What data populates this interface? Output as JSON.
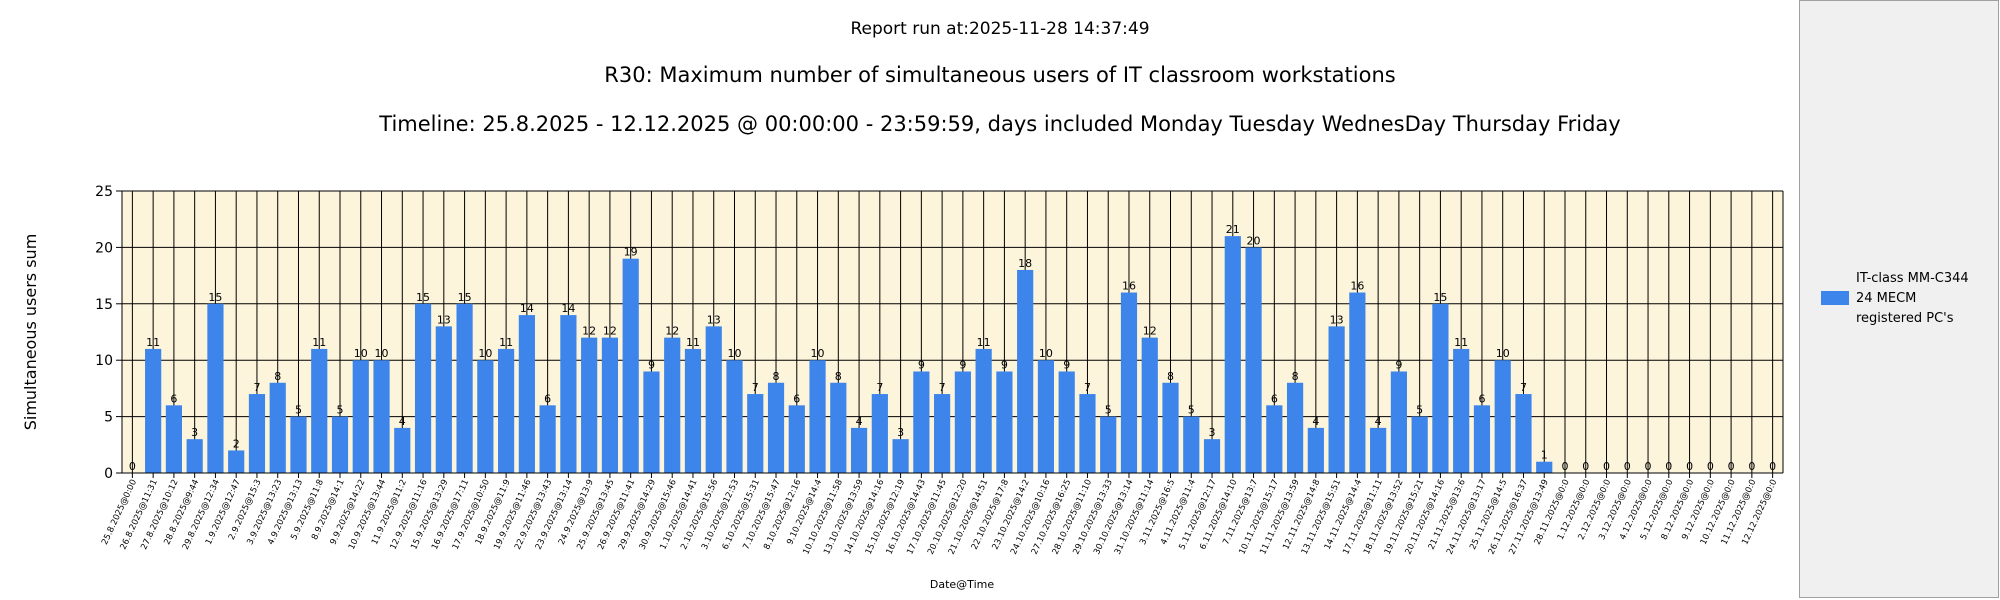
{
  "report_run": "Report run at:2025-11-28 14:37:49",
  "legend": {
    "lines": [
      "IT-class MM-C344",
      "24 MECM",
      "registered PC's"
    ]
  },
  "colors": {
    "bar": "#3d85ea",
    "plot_bg": "#fdf5db",
    "legend_bg": "#f0f0f0"
  },
  "chart_data": {
    "type": "bar",
    "title": "R30: Maximum number of simultaneous users of IT classroom workstations",
    "subtitle": "Timeline: 25.8.2025  - 12.12.2025  @  00:00:00 -  23:59:59, days included Monday Tuesday WednesDay Thursday Friday",
    "xlabel": "Date@Time",
    "ylabel": "Simultaneous users sum",
    "ylim": [
      0,
      25
    ],
    "yticks": [
      0,
      5,
      10,
      15,
      20,
      25
    ],
    "grid": true,
    "legend_position": "right",
    "categories": [
      "25.8.2025@0:00",
      "26.8.2025@11:31",
      "27.8.2025@10:12",
      "28.8.2025@9:44",
      "29.8.2025@12:34",
      "1.9.2025@12:47",
      "2.9.2025@15:3",
      "3.9.2025@13:23",
      "4.9.2025@13:13",
      "5.9.2025@11:8",
      "8.9.2025@14:1",
      "9.9.2025@14:22",
      "10.9.2025@13:44",
      "11.9.2025@11:2",
      "12.9.2025@11:16",
      "15.9.2025@13:29",
      "16.9.2025@17:11",
      "17.9.2025@10:50",
      "18.9.2025@11:9",
      "19.9.2025@11:46",
      "22.9.2025@13:43",
      "23.9.2025@13:14",
      "24.9.2025@13:9",
      "25.9.2025@13:45",
      "26.9.2025@11:41",
      "29.9.2025@14:29",
      "30.9.2025@15:46",
      "1.10.2025@14:41",
      "2.10.2025@15:56",
      "3.10.2025@12:53",
      "6.10.2025@15:31",
      "7.10.2025@15:47",
      "8.10.2025@12:16",
      "9.10.2025@14:4",
      "10.10.2025@11:58",
      "13.10.2025@13:59",
      "14.10.2025@14:16",
      "15.10.2025@12:19",
      "16.10.2025@14:43",
      "17.10.2025@11:45",
      "20.10.2025@12:20",
      "21.10.2025@14:51",
      "22.10.2025@17:8",
      "23.10.2025@14:2",
      "24.10.2025@10:16",
      "27.10.2025@16:25",
      "28.10.2025@11:10",
      "29.10.2025@13:33",
      "30.10.2025@13:14",
      "31.10.2025@11:14",
      "3.11.2025@16:5",
      "4.11.2025@11:4",
      "5.11.2025@12:17",
      "6.11.2025@14:10",
      "7.11.2025@13:7",
      "10.11.2025@15:17",
      "11.11.2025@13:59",
      "12.11.2025@14:8",
      "13.11.2025@15:51",
      "14.11.2025@14:4",
      "17.11.2025@11:11",
      "18.11.2025@13:52",
      "19.11.2025@15:21",
      "20.11.2025@14:16",
      "21.11.2025@13:6",
      "24.11.2025@13:17",
      "25.11.2025@14:5",
      "26.11.2025@16:37",
      "27.11.2025@13:49",
      "28.11.2025@0:0",
      "1.12.2025@0:0",
      "2.12.2025@0:0",
      "3.12.2025@0:0",
      "4.12.2025@0:0",
      "5.12.2025@0:0",
      "8.12.2025@0:0",
      "9.12.2025@0:0",
      "10.12.2025@0:0",
      "11.12.2025@0:0",
      "12.12.2025@0:0"
    ],
    "series": [
      {
        "name": "IT-class MM-C344 24 MECM registered PC's",
        "values": [
          0,
          11,
          6,
          3,
          15,
          2,
          7,
          8,
          5,
          11,
          5,
          10,
          10,
          4,
          15,
          13,
          15,
          10,
          11,
          14,
          6,
          14,
          12,
          12,
          19,
          9,
          12,
          11,
          13,
          10,
          7,
          8,
          6,
          10,
          8,
          4,
          7,
          3,
          9,
          7,
          9,
          11,
          9,
          18,
          10,
          9,
          7,
          5,
          16,
          12,
          8,
          5,
          3,
          21,
          20,
          6,
          8,
          4,
          13,
          16,
          4,
          9,
          5,
          15,
          11,
          6,
          10,
          7,
          1,
          0,
          0,
          0,
          0,
          0,
          0,
          0,
          0,
          0,
          0,
          0
        ]
      }
    ]
  }
}
